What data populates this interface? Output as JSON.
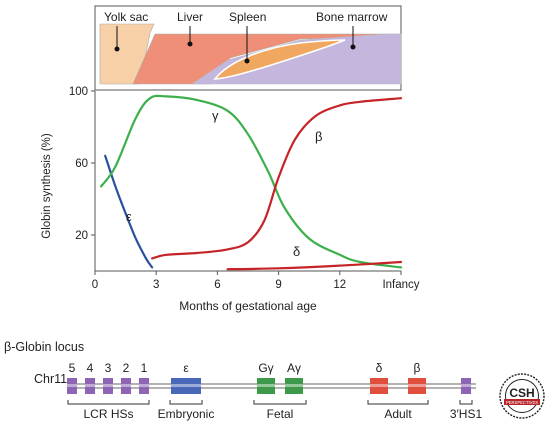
{
  "organs": {
    "labels": [
      "Yolk sac",
      "Liver",
      "Spleen",
      "Bone marrow"
    ],
    "colors": {
      "yolk_sac": "#f7d0a8",
      "liver": "#ef8f78",
      "spleen": "#f0a860",
      "bone_marrow": "#c4b6dc"
    }
  },
  "chart_data": {
    "type": "line",
    "ylabel": "Globin synthesis (%)",
    "xlabel": "Months of gestational age",
    "xticks": [
      "0",
      "3",
      "6",
      "9",
      "12",
      "Infancy"
    ],
    "yticks": [
      "20",
      "60",
      "100"
    ],
    "xlim": [
      0,
      15
    ],
    "ylim": [
      0,
      100
    ],
    "grid": false,
    "series": [
      {
        "name": "ε",
        "color": "#2a4f9e",
        "x": [
          0.5,
          1.0,
          1.5,
          2.0,
          2.5,
          2.8
        ],
        "y": [
          64,
          47,
          32,
          18,
          7,
          2
        ]
      },
      {
        "name": "γ",
        "color": "#3db04c",
        "x": [
          0.3,
          1,
          2,
          2.7,
          3.5,
          5,
          6.5,
          7.5,
          8.5,
          9.3,
          10.5,
          12,
          13,
          15
        ],
        "y": [
          47,
          58,
          85,
          96,
          97,
          95,
          89,
          76,
          55,
          35,
          18,
          9,
          5,
          2
        ]
      },
      {
        "name": "β",
        "color": "#c62328",
        "x": [
          2.8,
          3.5,
          5,
          6.5,
          7.5,
          8.3,
          9,
          9.8,
          10.8,
          12,
          13,
          15
        ],
        "y": [
          7,
          9,
          10,
          12,
          16,
          28,
          52,
          73,
          86,
          92,
          94,
          96
        ]
      },
      {
        "name": "δ",
        "color": "#c62328",
        "x": [
          6.5,
          9,
          12,
          15
        ],
        "y": [
          1,
          1.5,
          3,
          5
        ]
      }
    ]
  },
  "locus": {
    "title": "β-Globin locus",
    "chromosome": "Chr11",
    "elements": [
      {
        "label": "5",
        "color": "#8e64b4"
      },
      {
        "label": "4",
        "color": "#8e64b4"
      },
      {
        "label": "3",
        "color": "#8e64b4"
      },
      {
        "label": "2",
        "color": "#8e64b4"
      },
      {
        "label": "1",
        "color": "#8e64b4"
      },
      {
        "label": "ε",
        "color": "#4a68b8"
      },
      {
        "label": "Gγ",
        "color": "#3e9a4a"
      },
      {
        "label": "Aγ",
        "color": "#3e9a4a"
      },
      {
        "label": "δ",
        "color": "#de4f3e"
      },
      {
        "label": "β",
        "color": "#de4f3e"
      },
      {
        "label": "",
        "color": "#8e64b4"
      }
    ],
    "groups": [
      "LCR HSs",
      "Embryonic",
      "Fetal",
      "Adult",
      "3′HS1"
    ]
  },
  "logo": {
    "text": "CSH",
    "subtext": "PERSPECTIVES"
  }
}
